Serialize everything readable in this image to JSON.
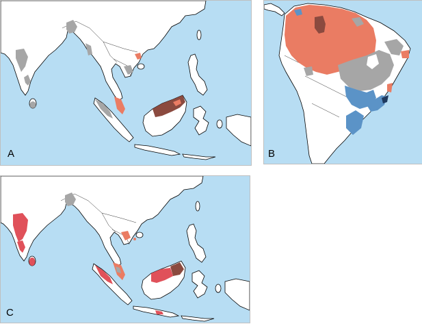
{
  "panels": [
    {
      "id": "A",
      "label": "A"
    },
    {
      "id": "B",
      "label": "B"
    },
    {
      "id": "C",
      "label": "C"
    }
  ],
  "colors": {
    "water": "#b7ddf3",
    "land": "#ffffff",
    "gray": "#a6a6a6",
    "salmon": "#ea7c63",
    "red": "#e0515a",
    "brown": "#8b4a3f",
    "blue": "#5b93c7"
  }
}
